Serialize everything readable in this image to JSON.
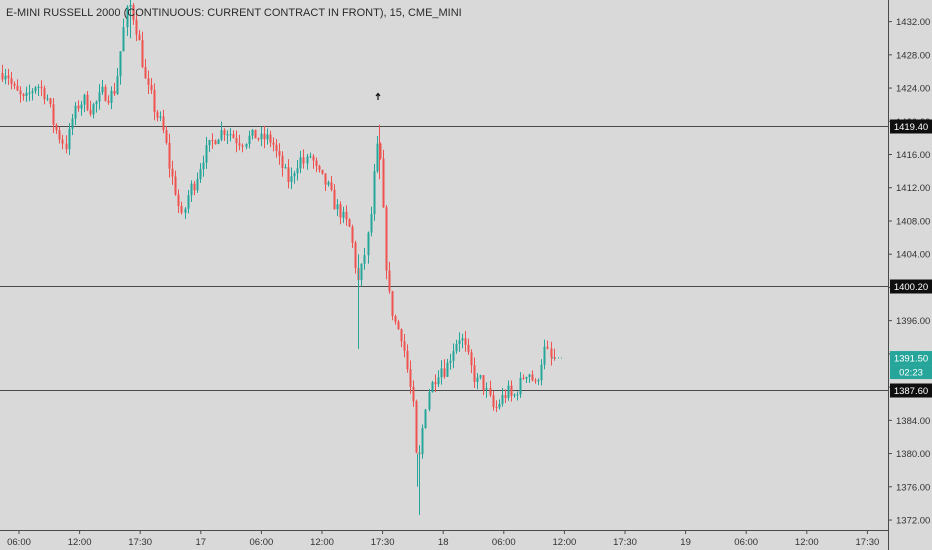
{
  "chart_title": "E-MINI RUSSELL 2000 (CONTINUOUS: CURRENT CONTRACT IN FRONT), 15, CME_MINI",
  "colors": {
    "background": "#d9d9d9",
    "up_candle": "#26a69a",
    "down_candle": "#ef5350",
    "level_line": "#4a4a4a",
    "axis_text": "#333333",
    "last_price_badge": "#26a69a"
  },
  "chart_data": {
    "type": "candlestick",
    "title": "E-MINI RUSSELL 2000 (CONTINUOUS: CURRENT CONTRACT IN FRONT), 15, CME_MINI",
    "ylim": [
      1370.8,
      1434.6
    ],
    "x_tick_labels": [
      "06:00",
      "12:00",
      "17:30",
      "17",
      "06:00",
      "12:00",
      "17:30",
      "18",
      "06:00",
      "12:00",
      "17:30",
      "19",
      "06:00",
      "12:00",
      "17:30"
    ],
    "y_tick_labels": [
      "1432.00",
      "1428.00",
      "1424.00",
      "1420.00",
      "1416.00",
      "1412.00",
      "1408.00",
      "1404.00",
      "1400.00",
      "1396.00",
      "1392.00",
      "1388.00",
      "1384.00",
      "1380.00",
      "1376.00",
      "1372.00"
    ],
    "y_tick_values": [
      1432,
      1428,
      1424,
      1420,
      1416,
      1412,
      1408,
      1404,
      1400,
      1396,
      1392,
      1388,
      1384,
      1380,
      1376,
      1372
    ],
    "horizontal_levels": [
      {
        "value": 1419.4,
        "label": "1419.40"
      },
      {
        "value": 1400.2,
        "label": "1400.20"
      },
      {
        "value": 1387.6,
        "label": "1387.60"
      }
    ],
    "last_price": {
      "value": 1391.5,
      "label": "1391.50",
      "countdown": "02:23"
    },
    "price_path": [
      [
        0,
        1425.8
      ],
      [
        6,
        1426.0
      ],
      [
        12,
        1424.0
      ],
      [
        18,
        1423.2
      ],
      [
        24,
        1422.4
      ],
      [
        30,
        1423.5
      ],
      [
        36,
        1424.5
      ],
      [
        42,
        1423.8
      ],
      [
        48,
        1422.6
      ],
      [
        54,
        1419.5
      ],
      [
        60,
        1418.0
      ],
      [
        66,
        1417.0
      ],
      [
        72,
        1420.5
      ],
      [
        78,
        1422.0
      ],
      [
        84,
        1422.6
      ],
      [
        90,
        1421.5
      ],
      [
        96,
        1422.2
      ],
      [
        102,
        1423.5
      ],
      [
        108,
        1423.0
      ],
      [
        114,
        1423.5
      ],
      [
        118,
        1426.0
      ],
      [
        122,
        1430.0
      ],
      [
        126,
        1433.0
      ],
      [
        130,
        1434.0
      ],
      [
        134,
        1432.0
      ],
      [
        138,
        1430.0
      ],
      [
        142,
        1427.0
      ],
      [
        146,
        1424.0
      ],
      [
        150,
        1423.5
      ],
      [
        155,
        1421.0
      ],
      [
        160,
        1420.0
      ],
      [
        165,
        1418.0
      ],
      [
        170,
        1414.0
      ],
      [
        174,
        1412.5
      ],
      [
        178,
        1410.0
      ],
      [
        182,
        1408.0
      ],
      [
        186,
        1410.5
      ],
      [
        190,
        1412.0
      ],
      [
        194,
        1412.5
      ],
      [
        198,
        1414.0
      ],
      [
        202,
        1415.5
      ],
      [
        206,
        1416.5
      ],
      [
        210,
        1417.2
      ],
      [
        215,
        1418.0
      ],
      [
        220,
        1418.7
      ],
      [
        225,
        1419.0
      ],
      [
        230,
        1418.6
      ],
      [
        236,
        1417.8
      ],
      [
        242,
        1417.5
      ],
      [
        248,
        1418.0
      ],
      [
        254,
        1418.3
      ],
      [
        260,
        1417.8
      ],
      [
        266,
        1418.0
      ],
      [
        272,
        1417.5
      ],
      [
        278,
        1415.5
      ],
      [
        284,
        1414.0
      ],
      [
        290,
        1412.5
      ],
      [
        295,
        1414.5
      ],
      [
        300,
        1415.5
      ],
      [
        305,
        1414.8
      ],
      [
        310,
        1416.0
      ],
      [
        316,
        1414.0
      ],
      [
        322,
        1413.0
      ],
      [
        328,
        1412.0
      ],
      [
        334,
        1410.0
      ],
      [
        340,
        1409.0
      ],
      [
        345,
        1408.0
      ],
      [
        350,
        1407.0
      ],
      [
        355,
        1403.0
      ],
      [
        358,
        1400.5
      ],
      [
        362,
        1402.5
      ],
      [
        366,
        1405.0
      ],
      [
        370,
        1408.0
      ],
      [
        374,
        1414.0
      ],
      [
        378,
        1418.0
      ],
      [
        381,
        1413.0
      ],
      [
        384,
        1406.0
      ],
      [
        387,
        1400.5
      ],
      [
        390,
        1398.0
      ],
      [
        394,
        1396.0
      ],
      [
        398,
        1395.0
      ],
      [
        402,
        1394.0
      ],
      [
        406,
        1391.0
      ],
      [
        410,
        1388.0
      ],
      [
        414,
        1385.0
      ],
      [
        417,
        1378.0
      ],
      [
        420,
        1380.0
      ],
      [
        424,
        1385.0
      ],
      [
        428,
        1387.5
      ],
      [
        432,
        1388.5
      ],
      [
        436,
        1389.5
      ],
      [
        440,
        1390.5
      ],
      [
        444,
        1390.0
      ],
      [
        448,
        1391.0
      ],
      [
        452,
        1392.5
      ],
      [
        456,
        1393.5
      ],
      [
        460,
        1394.2
      ],
      [
        464,
        1393.0
      ],
      [
        468,
        1391.5
      ],
      [
        472,
        1390.0
      ],
      [
        476,
        1388.5
      ],
      [
        480,
        1389.0
      ],
      [
        484,
        1388.0
      ],
      [
        488,
        1387.0
      ],
      [
        492,
        1385.5
      ],
      [
        496,
        1385.5
      ],
      [
        500,
        1386.5
      ],
      [
        504,
        1387.0
      ],
      [
        508,
        1387.5
      ],
      [
        512,
        1386.5
      ],
      [
        516,
        1387.5
      ],
      [
        520,
        1388.5
      ],
      [
        524,
        1389.5
      ],
      [
        528,
        1390.0
      ],
      [
        532,
        1389.0
      ],
      [
        536,
        1388.0
      ],
      [
        540,
        1390.5
      ],
      [
        544,
        1392.5
      ],
      [
        548,
        1392.0
      ],
      [
        552,
        1391.0
      ],
      [
        556,
        1391.5
      ]
    ]
  }
}
